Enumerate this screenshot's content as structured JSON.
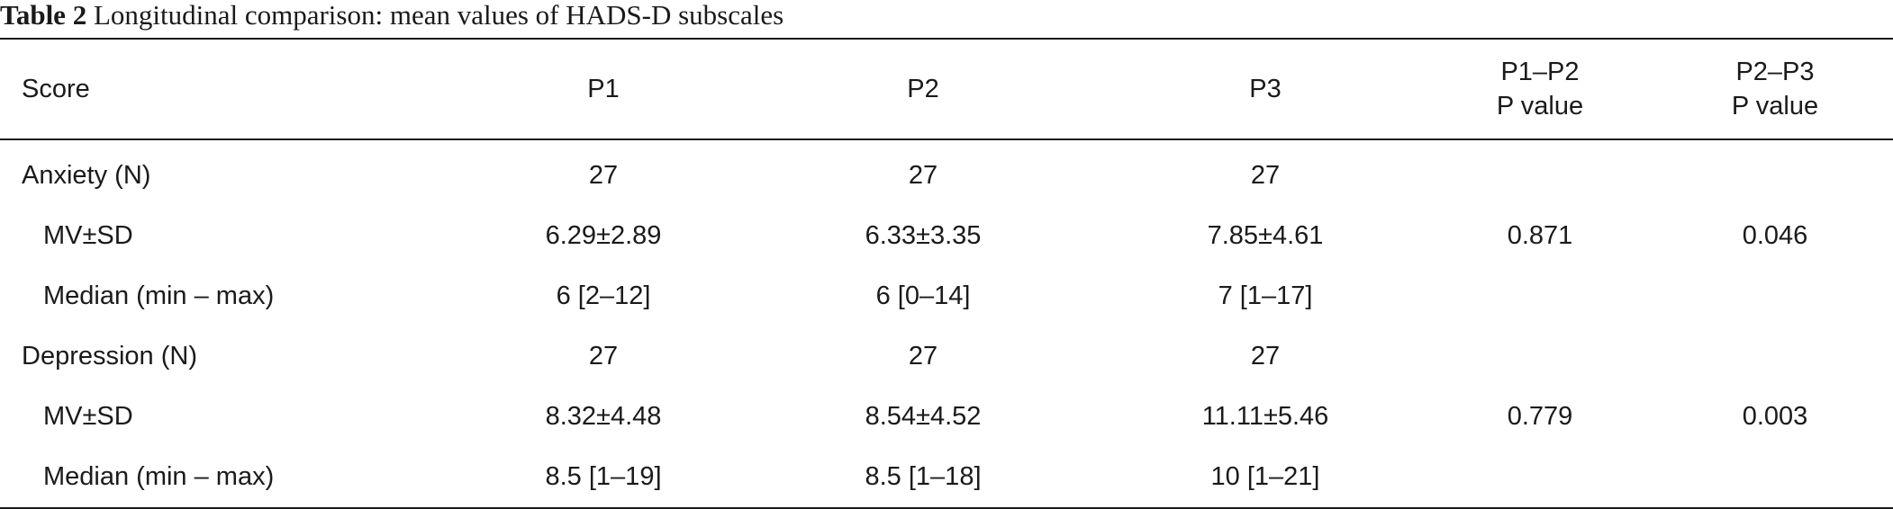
{
  "caption": {
    "label": "Table 2",
    "text": " Longitudinal comparison: mean values of HADS-D subscales"
  },
  "table": {
    "headers": {
      "score": "Score",
      "p1": "P1",
      "p2": "P2",
      "p3": "P3",
      "p1p2_line1": "P1–P2",
      "p1p2_line2": "P value",
      "p2p3_line1": "P2–P3",
      "p2p3_line2": "P value"
    },
    "rows": [
      {
        "label": "Anxiety (N)",
        "p1": "27",
        "p2": "27",
        "p3": "27",
        "p1p2": "",
        "p2p3": ""
      },
      {
        "label": "MV±SD",
        "p1": "6.29±2.89",
        "p2": "6.33±3.35",
        "p3": "7.85±4.61",
        "p1p2": "0.871",
        "p2p3": "0.046"
      },
      {
        "label": "Median (min – max)",
        "p1": "6 [2–12]",
        "p2": "6 [0–14]",
        "p3": "7 [1–17]",
        "p1p2": "",
        "p2p3": ""
      },
      {
        "label": "Depression (N)",
        "p1": "27",
        "p2": "27",
        "p3": "27",
        "p1p2": "",
        "p2p3": ""
      },
      {
        "label": "MV±SD",
        "p1": "8.32±4.48",
        "p2": "8.54±4.52",
        "p3": "11.11±5.46",
        "p1p2": "0.779",
        "p2p3": "0.003"
      },
      {
        "label": "Median (min – max)",
        "p1": "8.5 [1–19]",
        "p2": "8.5 [1–18]",
        "p3": "10 [1–21]",
        "p1p2": "",
        "p2p3": ""
      }
    ]
  }
}
